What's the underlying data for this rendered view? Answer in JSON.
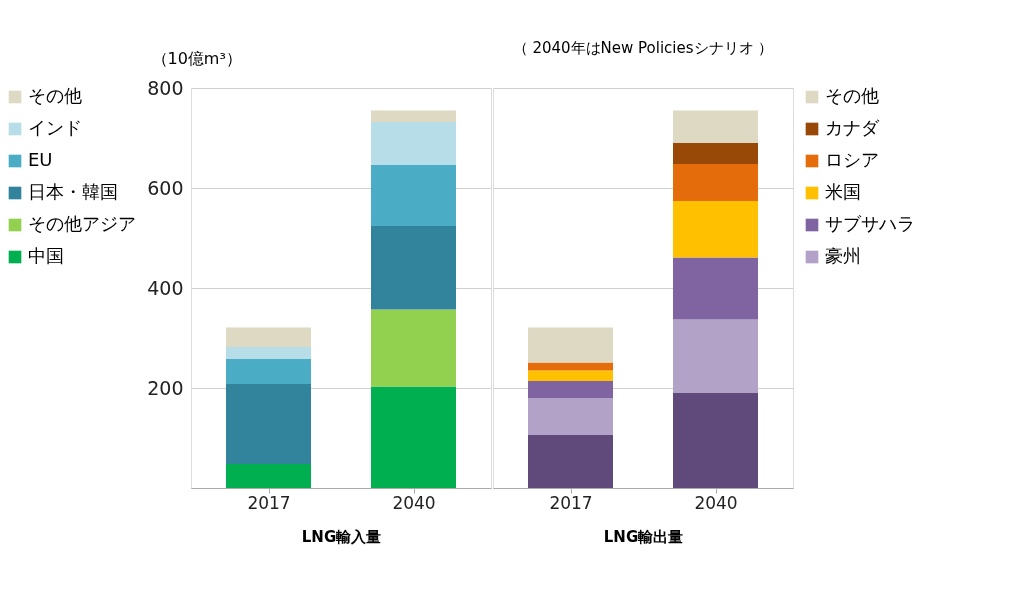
{
  "chart_data": [
    {
      "type": "bar",
      "stacked": true,
      "categories": [
        "2017",
        "2040"
      ],
      "xlabel": "LNG輸入量",
      "ylabel": "（10億m³）",
      "ylim": [
        0,
        800
      ],
      "yticks": [
        {
          "value": 0,
          "label": null
        },
        200,
        400,
        600,
        800
      ],
      "grid": "y",
      "legend": "left",
      "series": [
        {
          "name": "中国",
          "color": "#00b050",
          "values": [
            48,
            203
          ]
        },
        {
          "name": "その他アジア",
          "color": "#92d050",
          "values": [
            0,
            154
          ]
        },
        {
          "name": "日本・韓国",
          "color": "#31849b",
          "values": [
            160,
            167
          ]
        },
        {
          "name": "EU",
          "color": "#4bacc6",
          "values": [
            50,
            122
          ]
        },
        {
          "name": "インド",
          "color": "#b7dde8",
          "values": [
            24,
            86
          ]
        },
        {
          "name": "その他",
          "color": "#ddd9c3",
          "values": [
            39,
            23
          ]
        }
      ]
    },
    {
      "type": "bar",
      "stacked": true,
      "categories": [
        "2017",
        "2040"
      ],
      "xlabel": "LNG輸出量",
      "ylim": [
        0,
        800
      ],
      "yticks": [
        {
          "value": 0,
          "label": null
        },
        200,
        400,
        600,
        800
      ],
      "grid": "y",
      "legend": "right",
      "tick_labels": "x",
      "annotations": [
        "（ 2040年はNew Policiesシナリオ ）"
      ],
      "series": [
        {
          "color": "#604a7b",
          "values": [
            106,
            191
          ]
        },
        {
          "name": "豪州",
          "color": "#b3a2c7",
          "values": [
            74,
            146
          ]
        },
        {
          "name": "サブサハラ",
          "color": "#8064a2",
          "values": [
            34,
            124
          ]
        },
        {
          "name": "米国",
          "color": "#ffc000",
          "values": [
            21,
            113
          ]
        },
        {
          "name": "ロシア",
          "color": "#e46c0a",
          "values": [
            16,
            74
          ]
        },
        {
          "name": "カナダ",
          "color": "#984807",
          "values": [
            0,
            42
          ]
        },
        {
          "name": "その他",
          "color": "#ddd9c3",
          "values": [
            70,
            65
          ]
        }
      ]
    }
  ]
}
